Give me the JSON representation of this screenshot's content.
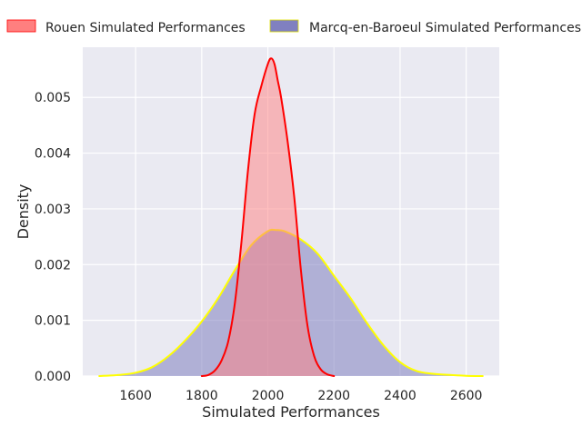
{
  "chart_data": {
    "type": "area",
    "xlabel": "Simulated Performances",
    "ylabel": "Density",
    "xlim": [
      1440,
      2700
    ],
    "ylim": [
      0,
      0.0059
    ],
    "xticks": [
      1600,
      1800,
      2000,
      2200,
      2400,
      2600
    ],
    "xtick_labels": [
      "1600",
      "1800",
      "2000",
      "2200",
      "2400",
      "2600"
    ],
    "yticks": [
      0,
      0.001,
      0.002,
      0.003,
      0.004,
      0.005
    ],
    "ytick_labels": [
      "0.000",
      "0.001",
      "0.002",
      "0.003",
      "0.004",
      "0.005"
    ],
    "grid": true,
    "legend_position": "top",
    "series": [
      {
        "name": "Rouen Simulated Performances",
        "fill_color": "#ff7f7f",
        "line_color": "#ff0000",
        "x": [
          1800,
          1820,
          1840,
          1860,
          1880,
          1900,
          1920,
          1940,
          1960,
          1980,
          2000,
          2010,
          2020,
          2030,
          2040,
          2060,
          2080,
          2100,
          2120,
          2140,
          2160,
          2180,
          2200
        ],
        "y": [
          0.0,
          2e-05,
          0.0001,
          0.00028,
          0.00062,
          0.0013,
          0.0024,
          0.0037,
          0.0047,
          0.0052,
          0.0056,
          0.0057,
          0.0056,
          0.0053,
          0.005,
          0.0042,
          0.0032,
          0.0019,
          0.0009,
          0.00036,
          0.00012,
          3e-05,
          0.0
        ]
      },
      {
        "name": "Marcq-en-Baroeul Simulated Performances",
        "fill_color": "#8080c0",
        "line_color": "#ffff00",
        "x": [
          1490,
          1550,
          1600,
          1650,
          1700,
          1750,
          1800,
          1850,
          1900,
          1950,
          2000,
          2025,
          2050,
          2100,
          2150,
          2200,
          2250,
          2300,
          2350,
          2400,
          2450,
          2500,
          2550,
          2600,
          2650
        ],
        "y": [
          0.0,
          2e-05,
          6e-05,
          0.00016,
          0.00036,
          0.00064,
          0.00098,
          0.0014,
          0.0019,
          0.00235,
          0.0026,
          0.00262,
          0.0026,
          0.00245,
          0.0022,
          0.0018,
          0.0014,
          0.00095,
          0.00055,
          0.00025,
          9e-05,
          4e-05,
          2e-05,
          5e-06,
          0.0
        ]
      }
    ]
  }
}
